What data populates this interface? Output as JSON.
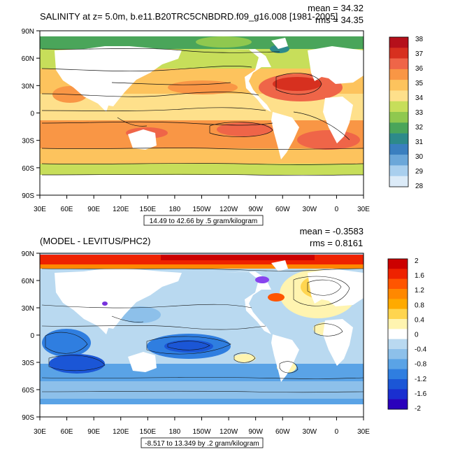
{
  "panels": [
    {
      "title": "SALINITY at z=   5.0m, b.e11.B20TRC5CNBDRD.f09_g16.008 [1981-2005]",
      "stats": [
        "mean = 34.32",
        "rms = 34.35"
      ],
      "contour_info": "14.49 to 42.66 by .5 gram/kilogram",
      "colorbar": {
        "labels": [
          "38",
          "37",
          "36",
          "35",
          "34",
          "33",
          "32",
          "31",
          "30",
          "29",
          "28"
        ],
        "colors": [
          "#b5101b",
          "#d7301f",
          "#ef6548",
          "#f99645",
          "#fdc35d",
          "#fee08b",
          "#c7de5a",
          "#8fc84f",
          "#4aa55a",
          "#2d8a8a",
          "#3a7fbf",
          "#6ba7d9",
          "#a9cfee",
          "#dcebf8"
        ]
      }
    },
    {
      "title": "(MODEL - LEVITUS/PHC2)",
      "stats": [
        "mean = -0.3583",
        "rms = 0.8161"
      ],
      "contour_info": "-8.517 to 13.349 by .2 gram/kilogram",
      "colorbar": {
        "labels": [
          "2",
          "1.6",
          "1.2",
          "0.8",
          "0.4",
          "0",
          "-0.4",
          "-0.8",
          "-1.2",
          "-1.6",
          "-2"
        ],
        "colors": [
          "#cc0000",
          "#ee2200",
          "#ff5500",
          "#ff8800",
          "#ffaa00",
          "#ffd54f",
          "#fff4b0",
          "#ffffff",
          "#b9d9f0",
          "#8dc0ea",
          "#5aa3e6",
          "#2f7ee0",
          "#1b56d6",
          "#1a2fd0",
          "#2a00bb"
        ]
      }
    }
  ],
  "map_axes": {
    "lat_labels": [
      "90N",
      "60N",
      "30N",
      "0",
      "30S",
      "60S",
      "90S"
    ],
    "lon_labels": [
      "30E",
      "60E",
      "90E",
      "120E",
      "150E",
      "180",
      "150W",
      "120W",
      "90W",
      "60W",
      "30W",
      "0",
      "30E"
    ]
  },
  "chart_data": [
    {
      "type": "heatmap",
      "title": "SALINITY at z=   5.0m, b.e11.B20TRC5CNBDRD.f09_g16.008 [1981-2005]",
      "mean": 34.32,
      "rms": 34.35,
      "contour_min": 14.49,
      "contour_max": 42.66,
      "contour_interval": 0.5,
      "units": "gram/kilogram",
      "colorbar_levels": [
        28,
        29,
        30,
        31,
        32,
        33,
        34,
        35,
        36,
        37,
        38
      ]
    },
    {
      "type": "heatmap",
      "title": "(MODEL - LEVITUS/PHC2)",
      "mean": -0.3583,
      "rms": 0.8161,
      "contour_min": -8.517,
      "contour_max": 13.349,
      "contour_interval": 0.2,
      "units": "gram/kilogram",
      "colorbar_levels": [
        -2,
        -1.6,
        -1.2,
        -0.8,
        -0.4,
        0,
        0.4,
        0.8,
        1.2,
        1.6,
        2
      ]
    }
  ]
}
